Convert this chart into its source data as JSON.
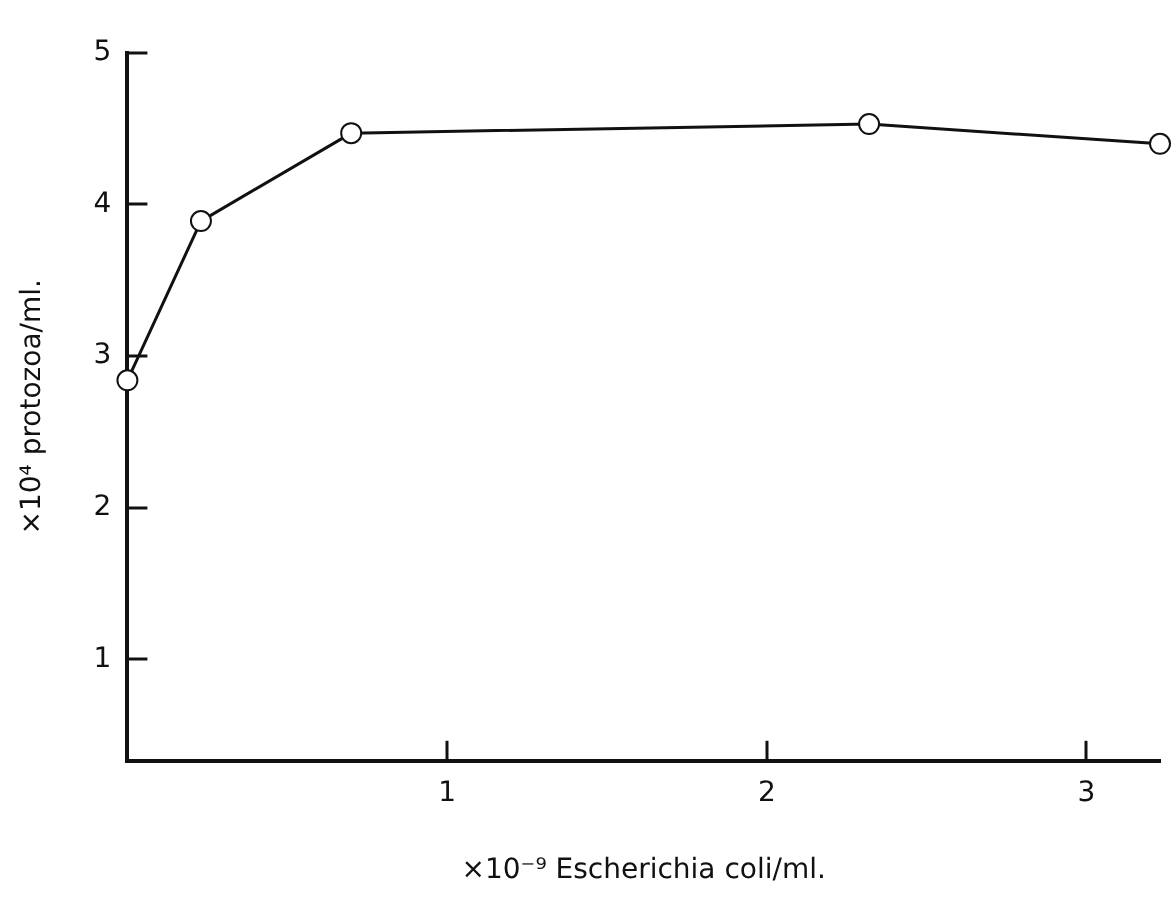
{
  "chart_data": {
    "type": "line",
    "xlabel": "×10⁻⁹ Escherichia coli/ml.",
    "ylabel": "×10⁴ protozoa/ml.",
    "x": [
      0,
      0.23,
      0.7,
      2.32,
      3.23
    ],
    "series": [
      {
        "color": "#111111",
        "values": [
          2.84,
          3.89,
          4.47,
          4.53,
          4.4
        ]
      }
    ],
    "xlim": [
      0,
      3.23
    ],
    "xticks": [
      1,
      2,
      3
    ],
    "ylim": [
      0.33,
      5
    ],
    "yticks": [
      1,
      2,
      3,
      4,
      5
    ],
    "grid": false,
    "legend": false,
    "marker": "circle",
    "line_style": "solid"
  }
}
